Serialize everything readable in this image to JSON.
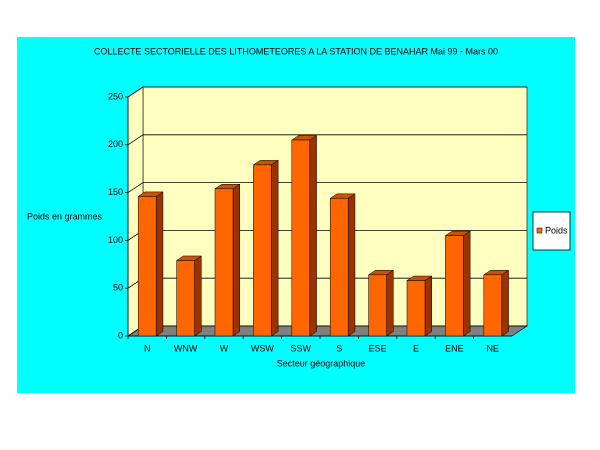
{
  "chart_data": {
    "type": "bar3d",
    "title": "COLLECTE SECTORIELLE DES LITHOMETEORES A LA STATION DE BENAHAR  Mai 99 - Mars 00",
    "x_label": "Secteur géographique",
    "y_label": "Poids en grammes",
    "categories": [
      "N",
      "WNW",
      "W",
      "WSW",
      "SSW",
      "S",
      "ESE",
      "E",
      "ENE",
      "NE"
    ],
    "series": [
      {
        "name": "Poids",
        "color": "#ff6600",
        "values": [
          146,
          79,
          154,
          179,
          205,
          144,
          64,
          58,
          105,
          64
        ]
      }
    ],
    "ylim": [
      0,
      250
    ],
    "yticks": [
      0,
      50,
      100,
      150,
      200,
      250
    ],
    "grid": true,
    "legend": "right"
  }
}
